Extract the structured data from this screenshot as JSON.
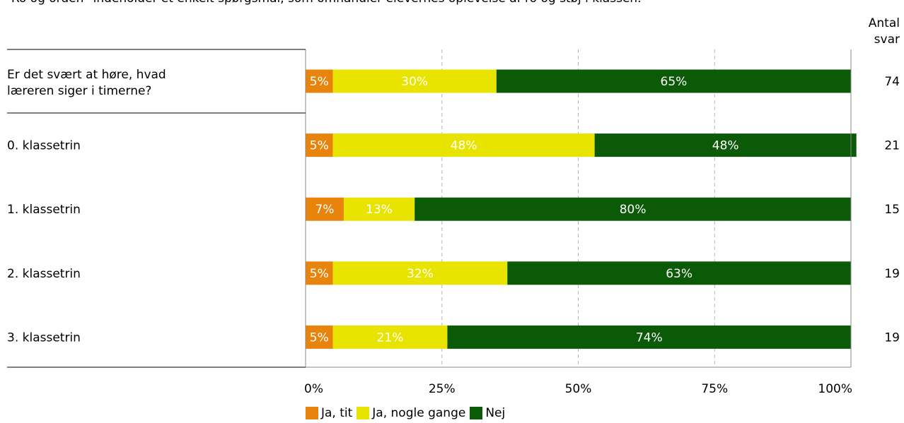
{
  "intro_text": "\"Ro og orden\" indeholder et enkelt spørgsmål, som omhandler elevernes oplevelse af ro og støj i klassen.",
  "count_header": {
    "line1": "Antal",
    "line2": "svar"
  },
  "colors": {
    "ja_tit": "#e8840c",
    "ja_nogle_gange": "#e8e400",
    "nej": "#0b5a07"
  },
  "chart_data": {
    "type": "bar",
    "orientation": "horizontal",
    "stacked": true,
    "categories": [
      "Er det svært at høre, hvad læreren siger i timerne?",
      "0. klassetrin",
      "1. klassetrin",
      "2. klassetrin",
      "3. klassetrin"
    ],
    "series": [
      {
        "name": "Ja, tit",
        "values": [
          5,
          5,
          7,
          5,
          5
        ]
      },
      {
        "name": "Ja, nogle gange",
        "values": [
          30,
          48,
          13,
          32,
          21
        ]
      },
      {
        "name": "Nej",
        "values": [
          65,
          48,
          80,
          63,
          74
        ]
      }
    ],
    "data_labels": [
      [
        "5%",
        "30%",
        "65%"
      ],
      [
        "5%",
        "48%",
        "48%"
      ],
      [
        "7%",
        "13%",
        "80%"
      ],
      [
        "5%",
        "32%",
        "63%"
      ],
      [
        "5%",
        "21%",
        "74%"
      ]
    ],
    "counts": [
      74,
      21,
      15,
      19,
      19
    ],
    "xlim": [
      0,
      100
    ],
    "xticks": [
      "0%",
      "25%",
      "50%",
      "75%",
      "100%"
    ],
    "grid": true,
    "legend_position": "bottom"
  }
}
